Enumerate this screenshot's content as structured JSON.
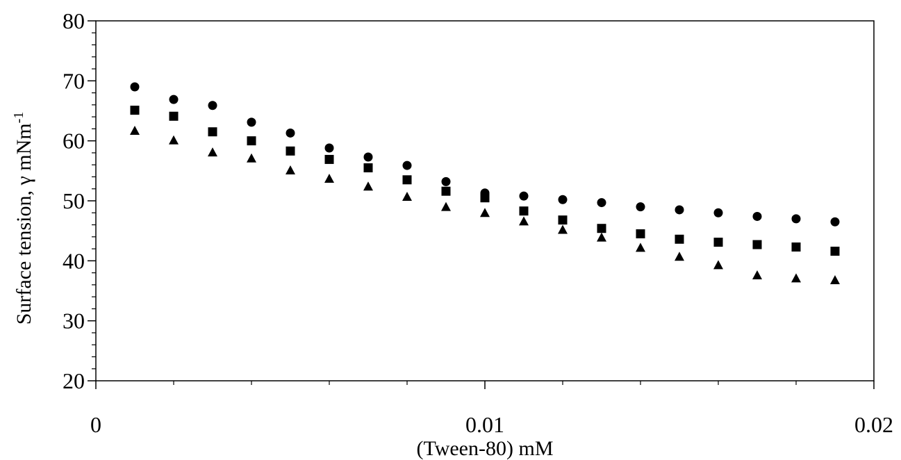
{
  "chart_data": {
    "type": "scatter",
    "title": "",
    "xlabel": "(Tween-80) mM",
    "ylabel_main": "Surface tension, γ mNm",
    "ylabel_sup": "-1",
    "xlim": [
      0,
      0.02
    ],
    "ylim": [
      20,
      80
    ],
    "x_ticks": [
      0,
      0.01,
      0.02
    ],
    "x_tick_labels": [
      "0",
      "0.01",
      "0.02"
    ],
    "y_ticks": [
      20,
      30,
      40,
      50,
      60,
      70,
      80
    ],
    "y_tick_labels": [
      "20",
      "30",
      "40",
      "50",
      "60",
      "70",
      "80"
    ],
    "grid": false,
    "legend": "none",
    "x": [
      0.001,
      0.002,
      0.003,
      0.004,
      0.005,
      0.006,
      0.007,
      0.008,
      0.009,
      0.01,
      0.011,
      0.012,
      0.013,
      0.014,
      0.015,
      0.016,
      0.017,
      0.018,
      0.019
    ],
    "series": [
      {
        "marker": "circle",
        "color": "#000000",
        "values": [
          69.0,
          66.9,
          65.9,
          63.1,
          61.3,
          58.8,
          57.3,
          55.9,
          53.2,
          51.3,
          50.8,
          50.2,
          49.7,
          49.0,
          48.5,
          48.0,
          47.4,
          47.0,
          46.5
        ]
      },
      {
        "marker": "square",
        "color": "#000000",
        "values": [
          65.1,
          64.1,
          61.5,
          60.0,
          58.3,
          56.9,
          55.5,
          53.5,
          51.6,
          50.5,
          48.3,
          46.8,
          45.4,
          44.5,
          43.6,
          43.1,
          42.7,
          42.3,
          41.6
        ]
      },
      {
        "marker": "triangle",
        "color": "#000000",
        "values": [
          61.7,
          60.1,
          58.1,
          57.1,
          55.1,
          53.7,
          52.4,
          50.7,
          49.0,
          48.0,
          46.6,
          45.2,
          43.9,
          42.2,
          40.7,
          39.3,
          37.6,
          37.1,
          36.8
        ]
      }
    ]
  }
}
